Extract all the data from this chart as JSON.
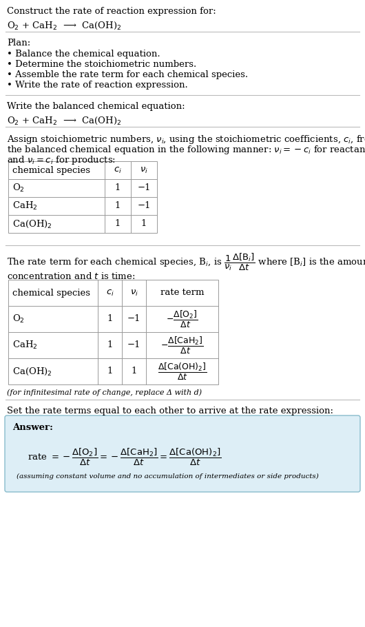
{
  "bg_color": "#ffffff",
  "text_color": "#000000",
  "section1_title": "Construct the rate of reaction expression for:",
  "section1_reaction": "O$_2$ + CaH$_2$  ⟶  Ca(OH)$_2$",
  "section2_title": "Plan:",
  "section2_bullets": [
    "• Balance the chemical equation.",
    "• Determine the stoichiometric numbers.",
    "• Assemble the rate term for each chemical species.",
    "• Write the rate of reaction expression."
  ],
  "section3_title": "Write the balanced chemical equation:",
  "section3_reaction": "O$_2$ + CaH$_2$  ⟶  Ca(OH)$_2$",
  "section4_line1": "Assign stoichiometric numbers, $\\nu_i$, using the stoichiometric coefficients, $c_i$, from",
  "section4_line2": "the balanced chemical equation in the following manner: $\\nu_i = -c_i$ for reactants",
  "section4_line3": "and $\\nu_i = c_i$ for products:",
  "table1_headers": [
    "chemical species",
    "$c_i$",
    "$\\nu_i$"
  ],
  "table1_rows": [
    [
      "O$_2$",
      "1",
      "−1"
    ],
    [
      "CaH$_2$",
      "1",
      "−1"
    ],
    [
      "Ca(OH)$_2$",
      "1",
      "1"
    ]
  ],
  "section5_line1": "The rate term for each chemical species, B$_i$, is $\\dfrac{1}{\\nu_i}\\dfrac{\\Delta[\\mathrm{B}_i]}{\\Delta t}$ where [B$_i$] is the amount",
  "section5_line2": "concentration and $t$ is time:",
  "table2_headers": [
    "chemical species",
    "$c_i$",
    "$\\nu_i$",
    "rate term"
  ],
  "table2_rows": [
    [
      "O$_2$",
      "1",
      "−1",
      "$-\\dfrac{\\Delta[\\mathrm{O_2}]}{\\Delta t}$"
    ],
    [
      "CaH$_2$",
      "1",
      "−1",
      "$-\\dfrac{\\Delta[\\mathrm{CaH_2}]}{\\Delta t}$"
    ],
    [
      "Ca(OH)$_2$",
      "1",
      "1",
      "$\\dfrac{\\Delta[\\mathrm{Ca(OH)_2}]}{\\Delta t}$"
    ]
  ],
  "section5_footnote": "(for infinitesimal rate of change, replace Δ with d)",
  "section6_title": "Set the rate terms equal to each other to arrive at the rate expression:",
  "answer_bg": "#ddeef6",
  "answer_border": "#88bbcc",
  "answer_label": "Answer:",
  "answer_rate": "rate $= -\\dfrac{\\Delta[\\mathrm{O_2}]}{\\Delta t} = -\\dfrac{\\Delta[\\mathrm{CaH_2}]}{\\Delta t} = \\dfrac{\\Delta[\\mathrm{Ca(OH)_2}]}{\\Delta t}$",
  "answer_footnote": "(assuming constant volume and no accumulation of intermediates or side products)"
}
